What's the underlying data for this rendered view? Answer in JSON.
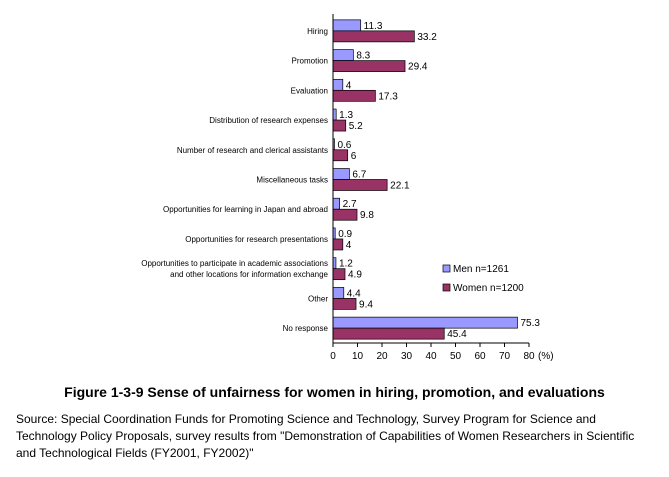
{
  "chart_data": {
    "type": "bar",
    "orientation": "horizontal",
    "categories": [
      "Hiring",
      "Promotion",
      "Evaluation",
      "Distribution of research expenses",
      "Number of research and clerical assistants",
      "Miscellaneous tasks",
      "Opportunities for learning in Japan and abroad",
      "Opportunities for research presentations",
      [
        "Opportunities to participate in academic associations",
        "and other locations for information exchange"
      ],
      "Other",
      "No response"
    ],
    "series": [
      {
        "name": "Men n=1261",
        "color": "#9999FF",
        "values": [
          11.3,
          8.3,
          4,
          1.3,
          0.6,
          6.7,
          2.7,
          0.9,
          1.2,
          4.4,
          75.3
        ]
      },
      {
        "name": "Women n=1200",
        "color": "#993366",
        "values": [
          33.2,
          29.4,
          17.3,
          5.2,
          6,
          22.1,
          9.8,
          4,
          4.9,
          9.4,
          45.4
        ]
      }
    ],
    "xlim": [
      0,
      80
    ],
    "xticks": [
      0,
      10,
      20,
      30,
      40,
      50,
      60,
      70,
      80
    ],
    "xunit": "(%)",
    "legend_position": "right",
    "grid": false
  },
  "figure": {
    "title": "Figure 1-3-9  Sense of unfairness for women in hiring, promotion, and evaluations",
    "source_prefix": "Source:",
    "source_text": "Special Coordination Funds for Promoting Science and Technology, Survey Program for Science and Technology Policy Proposals, survey results from \"Demonstration of Capabilities of Women Researchers in Scientific and Technological Fields (FY2001, FY2002)\""
  }
}
